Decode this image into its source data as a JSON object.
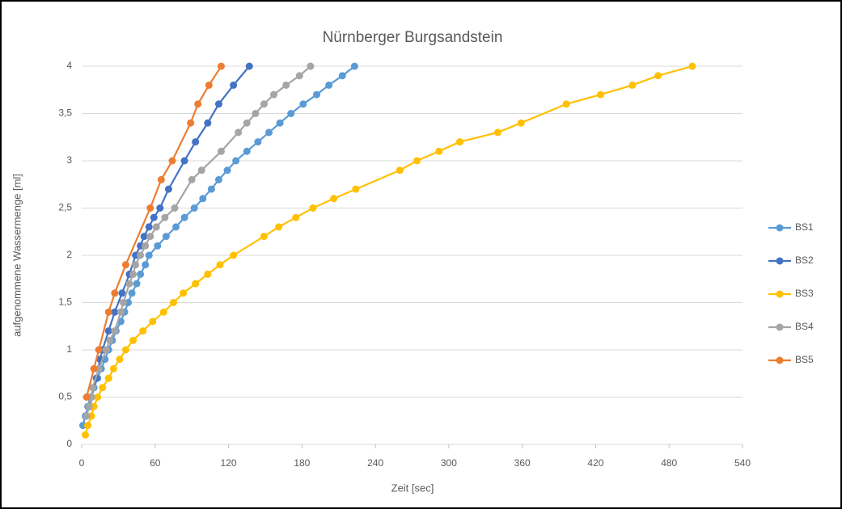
{
  "chart_data": {
    "type": "line",
    "title": "Nürnberger Burgsandstein",
    "x_label": "Zeit [sec]",
    "y_label": "aufgenommene Wassermenge [ml]",
    "xlim": [
      0,
      540
    ],
    "xticks": [
      0,
      60,
      120,
      180,
      240,
      300,
      360,
      420,
      480,
      540
    ],
    "ylim": [
      0,
      4
    ],
    "yticks": [
      0,
      {
        "value": 0.5,
        "label": "0,5"
      },
      1,
      {
        "value": 1.5,
        "label": "1,5"
      },
      2,
      {
        "value": 2.5,
        "label": "2,5"
      },
      3,
      {
        "value": 3.5,
        "label": "3,5"
      },
      4
    ],
    "grid": true,
    "legend": "right",
    "series": [
      {
        "name": "BS1",
        "color": "#5b9bd5",
        "x": [
          1,
          3,
          5,
          7,
          10,
          13,
          16,
          19,
          22,
          25,
          28,
          32,
          35,
          38,
          41,
          45,
          48,
          52,
          55,
          62,
          69,
          77,
          84,
          92,
          99,
          106,
          112,
          119,
          126,
          135,
          144,
          153,
          162,
          171,
          181,
          192,
          202,
          213,
          223
        ],
        "values": [
          0.2,
          0.3,
          0.4,
          0.5,
          0.6,
          0.7,
          0.8,
          0.9,
          1.0,
          1.1,
          1.2,
          1.3,
          1.4,
          1.5,
          1.6,
          1.7,
          1.8,
          1.9,
          2.0,
          2.1,
          2.2,
          2.3,
          2.4,
          2.5,
          2.6,
          2.7,
          2.8,
          2.9,
          3.0,
          3.1,
          3.2,
          3.3,
          3.4,
          3.5,
          3.6,
          3.7,
          3.8,
          3.9,
          4.0
        ]
      },
      {
        "name": "BS2",
        "color": "#4472c4",
        "x": [
          7,
          8,
          12,
          15,
          17,
          22,
          27,
          33,
          39,
          44,
          48,
          51,
          55,
          59,
          64,
          71,
          84,
          93,
          103,
          112,
          124,
          137
        ],
        "values": [
          0.4,
          0.5,
          0.7,
          0.9,
          1.0,
          1.2,
          1.4,
          1.6,
          1.8,
          2.0,
          2.1,
          2.2,
          2.3,
          2.4,
          2.5,
          2.7,
          3.0,
          3.2,
          3.4,
          3.6,
          3.8,
          4.0
        ]
      },
      {
        "name": "BS3",
        "color": "#ffc000",
        "x": [
          3,
          5,
          8,
          10,
          13,
          17,
          22,
          26,
          31,
          36,
          42,
          50,
          58,
          67,
          75,
          83,
          93,
          103,
          113,
          124,
          149,
          161,
          175,
          189,
          206,
          224,
          260,
          274,
          292,
          309,
          340,
          359,
          396,
          424,
          450,
          471,
          499
        ],
        "values": [
          0.1,
          0.2,
          0.3,
          0.4,
          0.5,
          0.6,
          0.7,
          0.8,
          0.9,
          1.0,
          1.1,
          1.2,
          1.3,
          1.4,
          1.5,
          1.6,
          1.7,
          1.8,
          1.9,
          2.0,
          2.2,
          2.3,
          2.4,
          2.5,
          2.6,
          2.7,
          2.9,
          3.0,
          3.1,
          3.2,
          3.3,
          3.4,
          3.6,
          3.7,
          3.8,
          3.9,
          4.0
        ]
      },
      {
        "name": "BS4",
        "color": "#a5a5a5",
        "x": [
          4,
          6,
          8,
          9,
          14,
          20,
          23,
          27,
          32,
          34,
          39,
          42,
          44,
          48,
          52,
          56,
          61,
          68,
          76,
          90,
          98,
          114,
          128,
          135,
          142,
          149,
          157,
          167,
          178,
          187
        ],
        "values": [
          0.3,
          0.4,
          0.5,
          0.6,
          0.8,
          1.0,
          1.1,
          1.2,
          1.4,
          1.5,
          1.7,
          1.8,
          1.9,
          2.0,
          2.1,
          2.2,
          2.3,
          2.4,
          2.5,
          2.8,
          2.9,
          3.1,
          3.3,
          3.4,
          3.5,
          3.6,
          3.7,
          3.8,
          3.9,
          4.0
        ]
      },
      {
        "name": "BS5",
        "color": "#ed7d31",
        "x": [
          4,
          10,
          14,
          22,
          27,
          36,
          56,
          65,
          74,
          89,
          95,
          104,
          114
        ],
        "values": [
          0.5,
          0.8,
          1.0,
          1.4,
          1.6,
          1.9,
          2.5,
          2.8,
          3.0,
          3.4,
          3.6,
          3.8,
          4.0
        ]
      }
    ]
  }
}
